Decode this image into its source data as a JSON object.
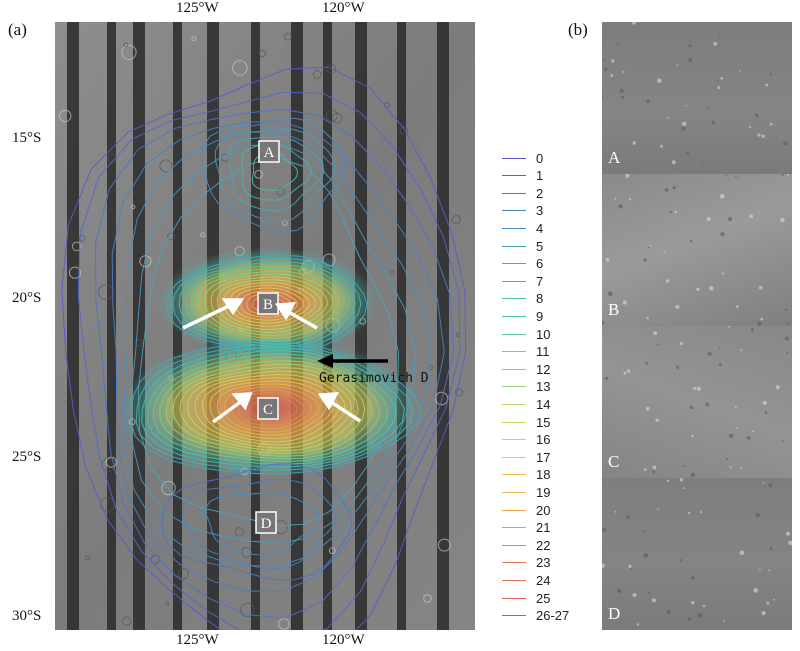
{
  "panel_a": {
    "label": "(a)",
    "lon_ticks_top": [
      "125°W",
      "120°W"
    ],
    "lon_ticks_bottom": [
      "125°W",
      "120°W"
    ],
    "lat_ticks": [
      "15°S",
      "20°S",
      "25°S",
      "30°S"
    ],
    "regions": [
      "A",
      "B",
      "C",
      "D"
    ],
    "annotation": "Gerasimovich D"
  },
  "legend": {
    "items": [
      {
        "label": "0",
        "color": "#5a5ad0"
      },
      {
        "label": "1",
        "color": "#5565cf"
      },
      {
        "label": "2",
        "color": "#4f72cc"
      },
      {
        "label": "3",
        "color": "#4a80c8"
      },
      {
        "label": "4",
        "color": "#468ec4"
      },
      {
        "label": "5",
        "color": "#449cc0"
      },
      {
        "label": "6",
        "color": "#42a9bc"
      },
      {
        "label": "7",
        "color": "#42b5b6"
      },
      {
        "label": "8",
        "color": "#45bfae"
      },
      {
        "label": "9",
        "color": "#4dc7a4"
      },
      {
        "label": "10",
        "color": "#5bcd98"
      },
      {
        "label": "11",
        "color": "#6dd28c"
      },
      {
        "label": "12",
        "color": "#82d580"
      },
      {
        "label": "13",
        "color": "#98d874"
      },
      {
        "label": "14",
        "color": "#add868"
      },
      {
        "label": "15",
        "color": "#c2d65e"
      },
      {
        "label": "16",
        "color": "#d4d256"
      },
      {
        "label": "17",
        "color": "#e2ca50"
      },
      {
        "label": "18",
        "color": "#ebbf4c"
      },
      {
        "label": "19",
        "color": "#eeb24a"
      },
      {
        "label": "20",
        "color": "#eea54a"
      },
      {
        "label": "21",
        "color": "#ec974b"
      },
      {
        "label": "22",
        "color": "#e8894d"
      },
      {
        "label": "23",
        "color": "#e47b50"
      },
      {
        "label": "24",
        "color": "#e06d53"
      },
      {
        "label": "25",
        "color": "#dc5f57"
      },
      {
        "label": "26-27",
        "color": "#d6515c"
      }
    ]
  },
  "panel_b": {
    "label": "(b)",
    "strips": [
      "A",
      "B",
      "C",
      "D"
    ]
  }
}
